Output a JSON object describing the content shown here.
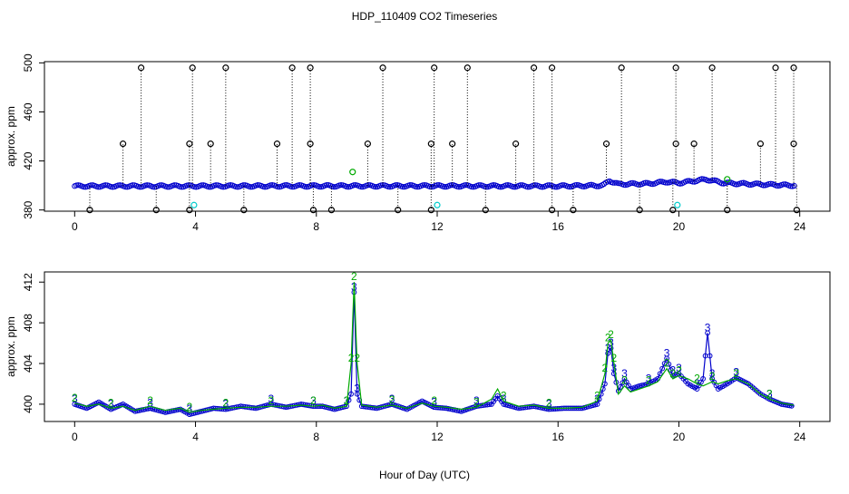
{
  "figure": {
    "title": "HDP_110409  CO2 Timeseries",
    "xlabel": "Hour of Day (UTC)"
  },
  "colors": {
    "black": "#000000",
    "blue": "#0000cc",
    "green": "#00aa00",
    "cyan": "#00cccc",
    "background": "#ffffff"
  },
  "chart_data": [
    {
      "type": "scatter",
      "title": "",
      "xlabel": "",
      "ylabel": "approx. ppm",
      "xlim": [
        -1,
        25
      ],
      "ylim": [
        379,
        501
      ],
      "x_ticks": [
        0,
        4,
        8,
        12,
        16,
        20,
        24
      ],
      "y_ticks": [
        380,
        420,
        460,
        500
      ],
      "grid": false,
      "baseline": [
        [
          0,
          399.5
        ],
        [
          4,
          399.5
        ],
        [
          8,
          399.6
        ],
        [
          12,
          399.6
        ],
        [
          16,
          399.5
        ],
        [
          17.5,
          400
        ],
        [
          17.7,
          404
        ],
        [
          18,
          401
        ],
        [
          19,
          401.5
        ],
        [
          19.6,
          403
        ],
        [
          20,
          402
        ],
        [
          20.9,
          405
        ],
        [
          21.5,
          402
        ],
        [
          22,
          401.5
        ],
        [
          23.8,
          400
        ]
      ],
      "spikes_high": [
        2.2,
        3.9,
        5.0,
        7.2,
        7.8,
        10.2,
        11.9,
        13.0,
        15.2,
        15.8,
        18.1,
        19.9,
        21.1,
        23.2,
        23.8
      ],
      "spikes_mid": [
        1.6,
        3.8,
        4.5,
        6.7,
        7.8,
        9.7,
        11.8,
        12.5,
        14.6,
        17.6,
        19.9,
        20.5,
        22.7,
        23.8
      ],
      "spikes_low": [
        0.5,
        2.7,
        3.8,
        5.6,
        7.9,
        8.5,
        10.7,
        11.8,
        13.6,
        15.8,
        16.5,
        18.7,
        19.8,
        21.6,
        23.9
      ],
      "cyan_points": [
        [
          3.95,
          384
        ],
        [
          12.0,
          384
        ],
        [
          19.95,
          384
        ]
      ],
      "green_points": [
        [
          9.2,
          411
        ],
        [
          21.6,
          405
        ]
      ]
    },
    {
      "type": "line",
      "title": "",
      "xlabel": "",
      "ylabel": "approx. ppm",
      "xlim": [
        -1,
        25
      ],
      "ylim": [
        398.3,
        413
      ],
      "x_ticks": [
        0,
        4,
        8,
        12,
        16,
        20,
        24
      ],
      "y_ticks": [
        400,
        404,
        408,
        412
      ],
      "x_tick_labels": [
        "0",
        "4",
        "8",
        "12",
        "16",
        "20",
        "24"
      ],
      "grid": false,
      "series": [
        {
          "name": "3",
          "color": "#0000cc",
          "points": [
            [
              0,
              400
            ],
            [
              0.4,
              399.6
            ],
            [
              0.8,
              400.2
            ],
            [
              1.2,
              399.5
            ],
            [
              1.6,
              400
            ],
            [
              2,
              399.3
            ],
            [
              2.5,
              399.6
            ],
            [
              3,
              399.2
            ],
            [
              3.5,
              399.5
            ],
            [
              3.8,
              399
            ],
            [
              4.2,
              399.3
            ],
            [
              4.6,
              399.6
            ],
            [
              5,
              399.5
            ],
            [
              5.5,
              399.8
            ],
            [
              6,
              399.6
            ],
            [
              6.5,
              400
            ],
            [
              7,
              399.7
            ],
            [
              7.5,
              400
            ],
            [
              7.9,
              399.8
            ],
            [
              8.2,
              399.8
            ],
            [
              8.6,
              399.5
            ],
            [
              9,
              399.8
            ],
            [
              9.15,
              401
            ],
            [
              9.25,
              411
            ],
            [
              9.35,
              401
            ],
            [
              9.5,
              399.8
            ],
            [
              10,
              399.6
            ],
            [
              10.5,
              400
            ],
            [
              11,
              399.5
            ],
            [
              11.5,
              400.3
            ],
            [
              11.9,
              399.7
            ],
            [
              12.3,
              399.6
            ],
            [
              12.8,
              399.3
            ],
            [
              13.3,
              399.8
            ],
            [
              13.8,
              400
            ],
            [
              14,
              400.8
            ],
            [
              14.2,
              400
            ],
            [
              14.7,
              399.6
            ],
            [
              15.2,
              399.8
            ],
            [
              15.7,
              399.5
            ],
            [
              16.2,
              399.6
            ],
            [
              16.8,
              399.6
            ],
            [
              17.3,
              400
            ],
            [
              17.55,
              402
            ],
            [
              17.65,
              405
            ],
            [
              17.75,
              405.5
            ],
            [
              17.85,
              403
            ],
            [
              18,
              401.3
            ],
            [
              18.2,
              402.5
            ],
            [
              18.4,
              401.5
            ],
            [
              18.7,
              401.8
            ],
            [
              19,
              402
            ],
            [
              19.3,
              402.5
            ],
            [
              19.6,
              404.5
            ],
            [
              19.8,
              402.8
            ],
            [
              20,
              403
            ],
            [
              20.3,
              402
            ],
            [
              20.6,
              401.5
            ],
            [
              20.8,
              402.5
            ],
            [
              20.95,
              407
            ],
            [
              21.1,
              402.5
            ],
            [
              21.3,
              401.5
            ],
            [
              21.6,
              402
            ],
            [
              21.9,
              402.6
            ],
            [
              22.3,
              402
            ],
            [
              22.7,
              401
            ],
            [
              23,
              400.5
            ],
            [
              23.4,
              400
            ],
            [
              23.8,
              399.8
            ]
          ]
        },
        {
          "name": "2",
          "color": "#00aa00",
          "points": [
            [
              0,
              400.1
            ],
            [
              0.4,
              399.8
            ],
            [
              0.8,
              400
            ],
            [
              1.2,
              399.6
            ],
            [
              1.6,
              399.8
            ],
            [
              2,
              399.4
            ],
            [
              2.5,
              399.8
            ],
            [
              3,
              399.4
            ],
            [
              3.5,
              399.6
            ],
            [
              3.8,
              399.2
            ],
            [
              4.2,
              399.4
            ],
            [
              4.6,
              399.5
            ],
            [
              5,
              399.6
            ],
            [
              5.5,
              399.7
            ],
            [
              6,
              399.7
            ],
            [
              6.5,
              399.8
            ],
            [
              7,
              399.8
            ],
            [
              7.5,
              399.9
            ],
            [
              7.9,
              399.8
            ],
            [
              8.2,
              399.9
            ],
            [
              8.6,
              399.6
            ],
            [
              9,
              399.8
            ],
            [
              9.15,
              404
            ],
            [
              9.25,
              412
            ],
            [
              9.35,
              404
            ],
            [
              9.5,
              399.9
            ],
            [
              10,
              399.7
            ],
            [
              10.5,
              399.9
            ],
            [
              11,
              399.6
            ],
            [
              11.5,
              400.1
            ],
            [
              11.9,
              399.8
            ],
            [
              12.3,
              399.7
            ],
            [
              12.8,
              399.5
            ],
            [
              13.3,
              399.7
            ],
            [
              13.8,
              400.5
            ],
            [
              14,
              401.5
            ],
            [
              14.2,
              400.3
            ],
            [
              14.7,
              399.8
            ],
            [
              15.2,
              399.9
            ],
            [
              15.7,
              399.6
            ],
            [
              16.2,
              399.6
            ],
            [
              16.8,
              399.7
            ],
            [
              17.3,
              400.3
            ],
            [
              17.55,
              403
            ],
            [
              17.65,
              406
            ],
            [
              17.75,
              406.3
            ],
            [
              17.85,
              404
            ],
            [
              18,
              401
            ],
            [
              18.2,
              401.8
            ],
            [
              18.4,
              401.2
            ],
            [
              18.7,
              401.5
            ],
            [
              19,
              401.8
            ],
            [
              19.3,
              402.2
            ],
            [
              19.6,
              403.5
            ],
            [
              19.8,
              402.5
            ],
            [
              20,
              402.8
            ],
            [
              20.3,
              402.5
            ],
            [
              20.6,
              402
            ],
            [
              20.8,
              401.8
            ],
            [
              20.95,
              402
            ],
            [
              21.1,
              402.2
            ],
            [
              21.3,
              402
            ],
            [
              21.6,
              402.3
            ],
            [
              21.9,
              402.5
            ],
            [
              22.3,
              402
            ],
            [
              22.7,
              401
            ],
            [
              23,
              400.5
            ],
            [
              23.4,
              400.1
            ],
            [
              23.8,
              399.9
            ]
          ]
        }
      ]
    }
  ]
}
